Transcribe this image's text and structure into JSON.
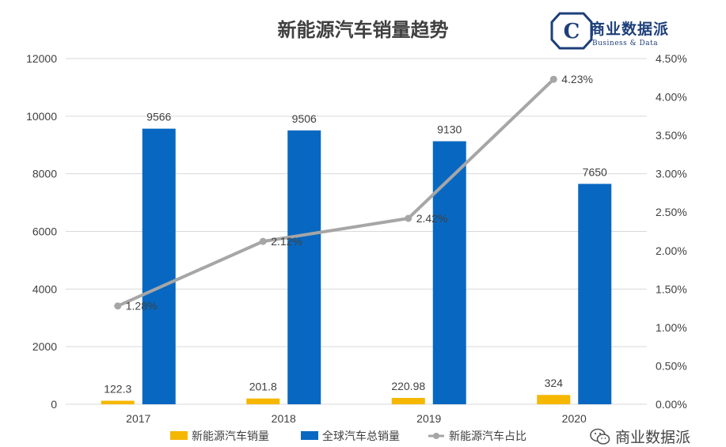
{
  "chart_data": {
    "type": "bar",
    "title": "新能源汽车销量趋势",
    "categories": [
      "2017",
      "2018",
      "2019",
      "2020"
    ],
    "series": [
      {
        "name": "新能源汽车销量",
        "type": "bar",
        "axis": "left",
        "color": "#f5b700",
        "values": [
          122.3,
          201.8,
          220.98,
          324
        ],
        "labels": [
          "122.3",
          "201.8",
          "220.98",
          "324"
        ]
      },
      {
        "name": "全球汽车总销量",
        "type": "bar",
        "axis": "left",
        "color": "#0868c1",
        "values": [
          9566,
          9506,
          9130,
          7650
        ],
        "labels": [
          "9566",
          "9506",
          "9130",
          "7650"
        ]
      },
      {
        "name": "新能源汽车占比",
        "type": "line",
        "axis": "right",
        "color": "#a6a6a6",
        "values": [
          1.28,
          2.12,
          2.42,
          4.23
        ],
        "labels": [
          "1.28%",
          "2.12%",
          "2.42%",
          "4.23%"
        ]
      }
    ],
    "y_left": {
      "min": 0,
      "max": 12000,
      "step": 2000,
      "ticks": [
        "0",
        "2000",
        "4000",
        "6000",
        "8000",
        "10000",
        "12000"
      ]
    },
    "y_right": {
      "min": 0,
      "max": 4.5,
      "step": 0.5,
      "ticks": [
        "0.00%",
        "0.50%",
        "1.00%",
        "1.50%",
        "2.00%",
        "2.50%",
        "3.00%",
        "3.50%",
        "4.00%",
        "4.50%"
      ]
    },
    "grid": true,
    "legend": "bottom"
  },
  "branding": {
    "logo_text": "商业数据派",
    "logo_sub": "Business & Data",
    "logo_icon": "hexagon-c-icon",
    "watermark_text": "商业数据派",
    "watermark_icon": "wechat-icon"
  }
}
